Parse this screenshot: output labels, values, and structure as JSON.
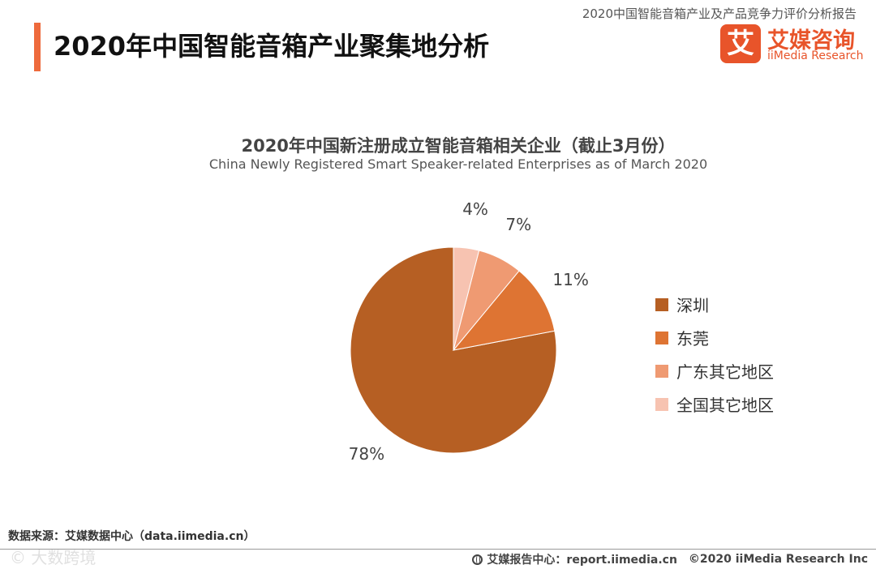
{
  "header": {
    "report_name": "2020中国智能音箱产业及产品竞争力评价分析报告",
    "page_title": "2020年中国智能音箱产业聚集地分析"
  },
  "logo": {
    "mark": "艾",
    "cn": "艾媒咨询",
    "en": "iiMedia Research"
  },
  "chart_data": {
    "type": "pie",
    "title": "2020年中国新注册成立智能音箱相关企业（截止3月份）",
    "subtitle": "China Newly Registered Smart Speaker-related Enterprises as of March 2020",
    "categories": [
      "深圳",
      "东莞",
      "广东其它地区",
      "全国其它地区"
    ],
    "values": [
      78,
      11,
      7,
      4
    ],
    "labels": [
      "78%",
      "11%",
      "7%",
      "4%"
    ],
    "colors": [
      "#b65f23",
      "#de7433",
      "#ef9a72",
      "#f7c3b1"
    ],
    "start": "12 o'clock, counterclockwise",
    "legend_position": "right"
  },
  "footer": {
    "source": "数据来源：艾媒数据中心（data.iimedia.cn）",
    "report_center": "艾媒报告中心：report.iimedia.cn",
    "copyright": "©2020  iiMedia Research  Inc",
    "watermark": "©  大数跨境"
  }
}
